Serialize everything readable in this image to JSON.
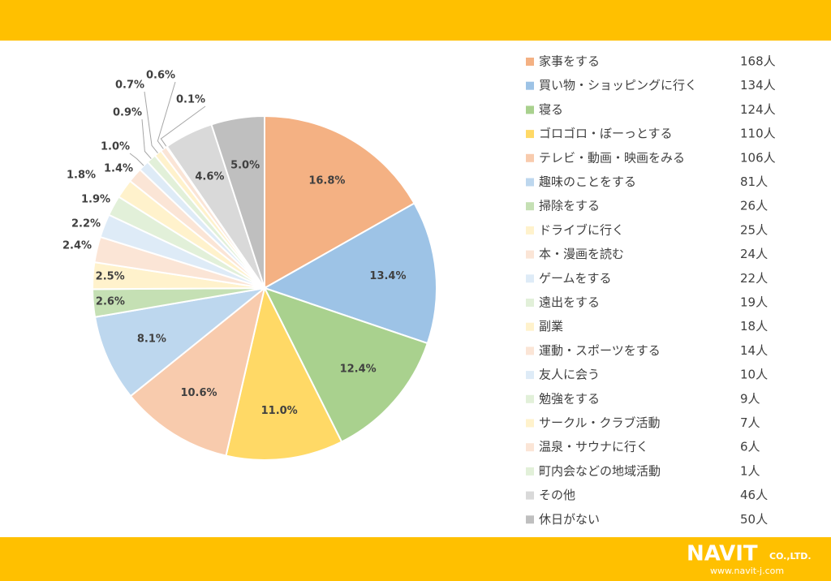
{
  "chart_data": {
    "type": "pie",
    "categories": [
      "家事をする",
      "買い物・ショッピングに行く",
      "寝る",
      "ゴロゴロ・ぼーっとする",
      "テレビ・動画・映画をみる",
      "趣味のことをする",
      "掃除をする",
      "ドライブに行く",
      "本・漫画を読む",
      "ゲームをする",
      "遠出をする",
      "副業",
      "運動・スポーツをする",
      "友人に会う",
      "勉強をする",
      "サークル・クラブ活動",
      "温泉・サウナに行く",
      "町内会などの地域活動",
      "その他",
      "休日がない"
    ],
    "values": [
      16.8,
      13.4,
      12.4,
      11.0,
      10.6,
      8.1,
      2.6,
      2.5,
      2.4,
      2.2,
      1.9,
      1.8,
      1.4,
      1.0,
      0.9,
      0.7,
      0.6,
      0.1,
      4.6,
      5.0
    ],
    "value_labels": [
      "16.8%",
      "13.4%",
      "12.4%",
      "11.0%",
      "10.6%",
      "8.1%",
      "2.6%",
      "2.5%",
      "2.4%",
      "2.2%",
      "1.9%",
      "1.8%",
      "1.4%",
      "1.0%",
      "0.9%",
      "0.7%",
      "0.6%",
      "0.1%",
      "4.6%",
      "5.0%"
    ],
    "counts": [
      168,
      134,
      124,
      110,
      106,
      81,
      26,
      25,
      24,
      22,
      19,
      18,
      14,
      10,
      9,
      7,
      6,
      1,
      46,
      50
    ],
    "count_labels": [
      "168人",
      "134人",
      "124人",
      "110人",
      "106人",
      "81人",
      "26人",
      "25人",
      "24人",
      "22人",
      "19人",
      "18人",
      "14人",
      "10人",
      "9人",
      "7人",
      "6人",
      "1人",
      "46人",
      "50人"
    ],
    "colors": [
      "#f4b183",
      "#9dc3e6",
      "#a9d18e",
      "#ffd966",
      "#f8cbad",
      "#bdd7ee",
      "#c5e0b4",
      "#fff2cc",
      "#fbe5d6",
      "#deebf7",
      "#e2f0d9",
      "#fff2cc",
      "#fbe5d6",
      "#deebf7",
      "#e2f0d9",
      "#fff2cc",
      "#fbe5d6",
      "#e2f0d9",
      "#d9d9d9",
      "#bfbfbf"
    ],
    "legend": "right"
  },
  "logo": {
    "name": "NAVIT",
    "suffix": "CO.,LTD.",
    "url": "www.navit-j.com"
  }
}
